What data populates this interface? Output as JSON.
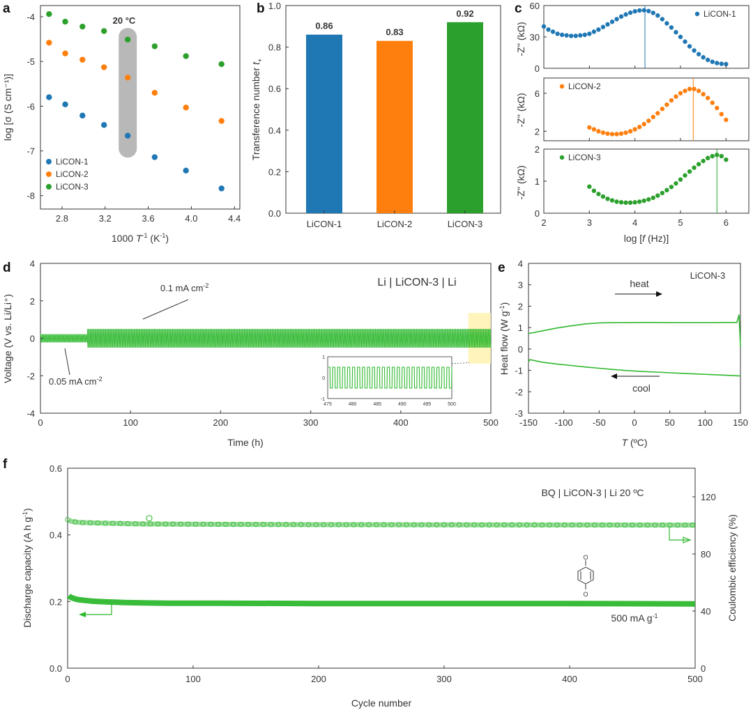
{
  "panels": {
    "a": "a",
    "b": "b",
    "c": "c",
    "d": "d",
    "e": "e",
    "f": "f"
  },
  "colors": {
    "s1": "#1f77b4",
    "s2": "#ff7f0e",
    "s3": "#2ca02c",
    "green": "#2eb82e",
    "axis": "#333333",
    "highlight": "#b8b8b8",
    "inset_box": "#fff3b0"
  },
  "chart_data": [
    {
      "id": "a",
      "type": "scatter",
      "xlabel_main": "1000 ",
      "xlabel_ital": "T",
      "xlabel_sup": "-1",
      "xlabel_unit": " (K",
      "xlabel_unit_sup": "-1",
      "xlabel_end": ")",
      "ylabel": "log [σ (S cm⁻¹)]",
      "xlim": [
        2.6,
        4.45
      ],
      "ylim": [
        -8.3,
        -3.75
      ],
      "xticks": [
        "2.8",
        "3.2",
        "3.6",
        "4.0",
        "4.4"
      ],
      "xtick_values": [
        2.8,
        3.2,
        3.6,
        4.0,
        4.4
      ],
      "yticks": [
        "-4",
        "-5",
        "-6",
        "-7",
        "-8"
      ],
      "ytick_values": [
        -4,
        -5,
        -6,
        -7,
        -8
      ],
      "annotation": "20 °C",
      "highlight_x": 3.41,
      "x": [
        2.68,
        2.83,
        2.99,
        3.19,
        3.41,
        3.66,
        3.95,
        4.28
      ],
      "series": [
        {
          "name": "LiCON-1",
          "color": "#1f77b4",
          "values": [
            -5.8,
            -5.96,
            -6.21,
            -6.42,
            -6.66,
            -7.14,
            -7.44,
            -7.84
          ]
        },
        {
          "name": "LiCON-2",
          "color": "#ff7f0e",
          "values": [
            -4.58,
            -4.82,
            -4.96,
            -5.13,
            -5.36,
            -5.7,
            -6.03,
            -6.33
          ]
        },
        {
          "name": "LiCON-3",
          "color": "#2ca02c",
          "values": [
            -3.94,
            -4.11,
            -4.22,
            -4.32,
            -4.51,
            -4.66,
            -4.88,
            -5.06
          ]
        }
      ]
    },
    {
      "id": "b",
      "type": "bar",
      "ylabel_main": "Transference number ",
      "ylabel_ital": "t",
      "ylabel_sub": "+",
      "ylim": [
        0,
        1.0
      ],
      "yticks": [
        "0.0",
        "0.2",
        "0.4",
        "0.6",
        "0.8",
        "1.0"
      ],
      "ytick_values": [
        0,
        0.2,
        0.4,
        0.6,
        0.8,
        1.0
      ],
      "categories": [
        "LiCON-1",
        "LiCON-2",
        "LiCON-3"
      ],
      "values": [
        0.86,
        0.83,
        0.92
      ],
      "labels": [
        "0.86",
        "0.83",
        "0.92"
      ],
      "colors": [
        "#1f77b4",
        "#ff7f0e",
        "#2ca02c"
      ]
    },
    {
      "id": "c",
      "type": "scatter",
      "xlabel_main": "log [",
      "xlabel_ital": "f",
      "xlabel_end": " (Hz)]",
      "ylabel": "-Z'' (kΩ)",
      "xlim": [
        2,
        6.5
      ],
      "xticks": [
        "2",
        "3",
        "4",
        "5",
        "6"
      ],
      "xtick_values": [
        2,
        3,
        4,
        5,
        6
      ],
      "subplots": [
        {
          "name": "LiCON-1",
          "color": "#1f77b4",
          "ylim": [
            0,
            60
          ],
          "yticks": [
            "0",
            "30",
            "60"
          ],
          "ytick_values": [
            0,
            30,
            60
          ],
          "vline": 4.22,
          "x": [
            2.0,
            2.1,
            2.2,
            2.3,
            2.4,
            2.5,
            2.6,
            2.7,
            2.8,
            2.9,
            3.0,
            3.1,
            3.2,
            3.3,
            3.4,
            3.5,
            3.6,
            3.7,
            3.8,
            3.9,
            4.0,
            4.1,
            4.2,
            4.3,
            4.4,
            4.5,
            4.6,
            4.7,
            4.8,
            4.9,
            5.0,
            5.1,
            5.2,
            5.3,
            5.4,
            5.5,
            5.6,
            5.7,
            5.8,
            5.9,
            6.0
          ],
          "y": [
            40,
            37,
            35,
            33,
            32,
            31.5,
            31,
            31,
            31.5,
            32,
            33,
            35,
            37,
            39.5,
            42,
            44.5,
            47,
            49.5,
            51.5,
            53.2,
            54.5,
            55.3,
            55.5,
            54.8,
            53,
            50.5,
            47,
            43,
            39,
            34.5,
            30,
            25.5,
            21,
            17,
            13.5,
            10.5,
            8,
            6.2,
            5,
            4.3,
            4
          ]
        },
        {
          "name": "LiCON-2",
          "color": "#ff7f0e",
          "ylim": [
            1,
            7.6
          ],
          "yticks": [
            "2",
            "6"
          ],
          "ytick_values": [
            2,
            6
          ],
          "vline": 5.28,
          "x": [
            3.0,
            3.1,
            3.2,
            3.3,
            3.4,
            3.5,
            3.6,
            3.7,
            3.8,
            3.9,
            4.0,
            4.1,
            4.2,
            4.3,
            4.4,
            4.5,
            4.6,
            4.7,
            4.8,
            4.9,
            5.0,
            5.1,
            5.2,
            5.3,
            5.4,
            5.5,
            5.6,
            5.7,
            5.8,
            5.9,
            6.0
          ],
          "y": [
            2.4,
            2.2,
            2.0,
            1.85,
            1.75,
            1.7,
            1.7,
            1.75,
            1.85,
            2.0,
            2.2,
            2.45,
            2.75,
            3.1,
            3.5,
            3.9,
            4.35,
            4.8,
            5.25,
            5.65,
            6.0,
            6.25,
            6.45,
            6.45,
            6.25,
            5.9,
            5.5,
            5.0,
            4.45,
            3.8,
            3.2
          ]
        },
        {
          "name": "LiCON-3",
          "color": "#2ca02c",
          "ylim": [
            0,
            2
          ],
          "yticks": [
            "0",
            "1",
            "2"
          ],
          "ytick_values": [
            0,
            1,
            2
          ],
          "vline": 5.8,
          "x": [
            3.0,
            3.1,
            3.2,
            3.3,
            3.4,
            3.5,
            3.6,
            3.7,
            3.8,
            3.9,
            4.0,
            4.1,
            4.2,
            4.3,
            4.4,
            4.5,
            4.6,
            4.7,
            4.8,
            4.9,
            5.0,
            5.1,
            5.2,
            5.3,
            5.4,
            5.5,
            5.6,
            5.7,
            5.8,
            5.9,
            6.0
          ],
          "y": [
            0.83,
            0.7,
            0.6,
            0.52,
            0.45,
            0.4,
            0.36,
            0.34,
            0.33,
            0.33,
            0.34,
            0.36,
            0.39,
            0.43,
            0.48,
            0.55,
            0.63,
            0.72,
            0.82,
            0.93,
            1.05,
            1.18,
            1.3,
            1.42,
            1.53,
            1.63,
            1.72,
            1.78,
            1.82,
            1.78,
            1.67
          ]
        }
      ]
    },
    {
      "id": "d",
      "type": "line",
      "title": "Li | LiCON-3 | Li",
      "xlabel": "Time (h)",
      "ylabel": "Voltage (V vs. Li/Li⁺)",
      "xlim": [
        0,
        500
      ],
      "ylim": [
        -4,
        4
      ],
      "xticks": [
        "0",
        "100",
        "200",
        "300",
        "400",
        "500"
      ],
      "xtick_values": [
        0,
        100,
        200,
        300,
        400,
        500
      ],
      "yticks": [
        "4",
        "2",
        "0",
        "-2",
        "-4"
      ],
      "ytick_values": [
        4,
        2,
        0,
        -2,
        -4
      ],
      "segments": [
        {
          "from": 0,
          "to": 52,
          "amplitude": 0.22,
          "current": "0.05 mA cm",
          "current_sup": "-2"
        },
        {
          "from": 52,
          "to": 500,
          "amplitude": 0.5,
          "current": "0.1 mA cm",
          "current_sup": "-2"
        }
      ],
      "inset": {
        "xlim": [
          475,
          500
        ],
        "ylim": [
          -1,
          1
        ],
        "xticks": [
          "475",
          "480",
          "485",
          "490",
          "495",
          "500"
        ],
        "xtick_values": [
          475,
          480,
          485,
          490,
          495,
          500
        ],
        "yticks": [
          "1",
          "0",
          "-1"
        ],
        "ytick_values": [
          1,
          0,
          -1
        ],
        "amplitude": 0.5
      }
    },
    {
      "id": "e",
      "type": "line",
      "title": "LiCON-3",
      "ylabel_main": "Heat flow (W g",
      "ylabel_sup": "-1",
      "ylabel_end": ")",
      "xlabel_ital": "T",
      "xlabel_end": " (ºC)",
      "xlim": [
        -150,
        150
      ],
      "ylim": [
        -3,
        4
      ],
      "xticks": [
        "-150",
        "-100",
        "-50",
        "0",
        "50",
        "100",
        "150"
      ],
      "xtick_values": [
        -150,
        -100,
        -50,
        0,
        50,
        100,
        150
      ],
      "yticks": [
        "4",
        "3",
        "2",
        "1",
        "0",
        "-1",
        "-2",
        "-3"
      ],
      "ytick_values": [
        4,
        3,
        2,
        1,
        0,
        -1,
        -2,
        -3
      ],
      "heat_label": "heat",
      "cool_label": "cool",
      "series": [
        {
          "name": "heat",
          "x": [
            -150,
            -130,
            -110,
            -90,
            -70,
            -50,
            -30,
            -10,
            10,
            30,
            50,
            70,
            90,
            110,
            130,
            145,
            148,
            150
          ],
          "y": [
            0.72,
            0.85,
            0.98,
            1.08,
            1.17,
            1.22,
            1.23,
            1.23,
            1.24,
            1.24,
            1.23,
            1.23,
            1.23,
            1.23,
            1.24,
            1.24,
            1.6,
            0.1
          ]
        },
        {
          "name": "cool",
          "x": [
            -150,
            -148,
            -130,
            -110,
            -90,
            -70,
            -50,
            -30,
            -10,
            10,
            30,
            50,
            70,
            90,
            110,
            130,
            150
          ],
          "y": [
            -0.6,
            -0.5,
            -0.62,
            -0.7,
            -0.77,
            -0.84,
            -0.9,
            -0.96,
            -1.01,
            -1.05,
            -1.08,
            -1.11,
            -1.14,
            -1.17,
            -1.2,
            -1.23,
            -1.26
          ]
        }
      ]
    },
    {
      "id": "f",
      "type": "scatter",
      "title": "BQ | LiCON-3 | Li    20 ºC",
      "rate_main": "500 mA g",
      "rate_sup": "-1",
      "xlabel": "Cycle number",
      "ylabel_main": "Discharge capacity (A h g",
      "ylabel_sup": "-1",
      "ylabel_end": ")",
      "ylabel_right": "Coulombic efficiency (%)",
      "xlim": [
        0,
        500
      ],
      "ylim": [
        0,
        0.6
      ],
      "ylim_right": [
        0,
        140
      ],
      "xticks": [
        "0",
        "100",
        "200",
        "300",
        "400",
        "500"
      ],
      "xtick_values": [
        0,
        100,
        200,
        300,
        400,
        500
      ],
      "yticks": [
        "0.6",
        "0.4",
        "0.2",
        "0.0"
      ],
      "ytick_values": [
        0.6,
        0.4,
        0.2,
        0.0
      ],
      "yticks_right": [
        "120",
        "80",
        "40",
        "0"
      ],
      "ytick_right_values": [
        120,
        80,
        40,
        0
      ],
      "series": [
        {
          "name": "Discharge capacity",
          "axis": "left",
          "x": [
            1,
            2,
            3,
            5,
            8,
            12,
            20,
            30,
            45,
            60,
            80,
            120,
            200,
            300,
            400,
            500
          ],
          "y": [
            0.218,
            0.214,
            0.212,
            0.209,
            0.206,
            0.204,
            0.201,
            0.199,
            0.197,
            0.196,
            0.195,
            0.195,
            0.194,
            0.194,
            0.194,
            0.193
          ]
        },
        {
          "name": "Coulombic efficiency",
          "axis": "right",
          "x": [
            1,
            2,
            5,
            10,
            30,
            60,
            100,
            200,
            300,
            400,
            500
          ],
          "y": [
            104,
            103,
            102.5,
            102,
            101.5,
            101,
            100.8,
            100.5,
            100.4,
            100.3,
            100.2
          ]
        }
      ]
    }
  ]
}
